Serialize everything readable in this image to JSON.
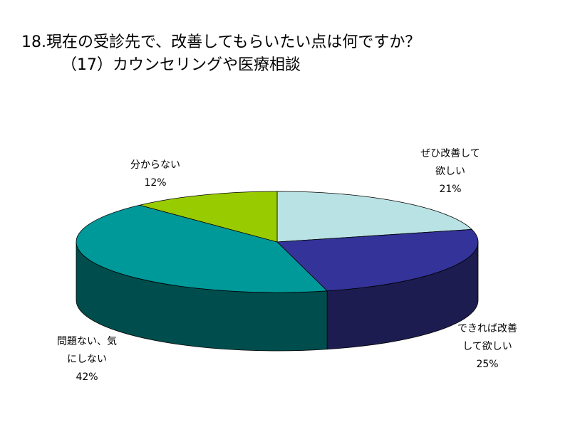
{
  "title_line1": "18.現在の受診先で、改善してもらいたい点は何ですか？",
  "title_line2": "（17）カウンセリングや医療相談",
  "chart_data": {
    "type": "pie",
    "three_d": true,
    "start_angle_deg": 90,
    "direction": "clockwise",
    "slices": [
      {
        "label_lines": [
          "ぜひ改善して",
          "欲しい"
        ],
        "value": 21,
        "value_label": "21%",
        "color": "#b9e2e4",
        "side_color": "#8fb4b6"
      },
      {
        "label_lines": [
          "できれば改善",
          "して欲しい"
        ],
        "value": 25,
        "value_label": "25%",
        "color": "#333399",
        "side_color": "#1c1c50"
      },
      {
        "label_lines": [
          "問題ない、気",
          "にしない"
        ],
        "value": 42,
        "value_label": "42%",
        "color": "#009999",
        "side_color": "#004d4d"
      },
      {
        "label_lines": [
          "分からない"
        ],
        "value": 12,
        "value_label": "12%",
        "color": "#99cc00",
        "side_color": "#5c7a00"
      }
    ]
  }
}
